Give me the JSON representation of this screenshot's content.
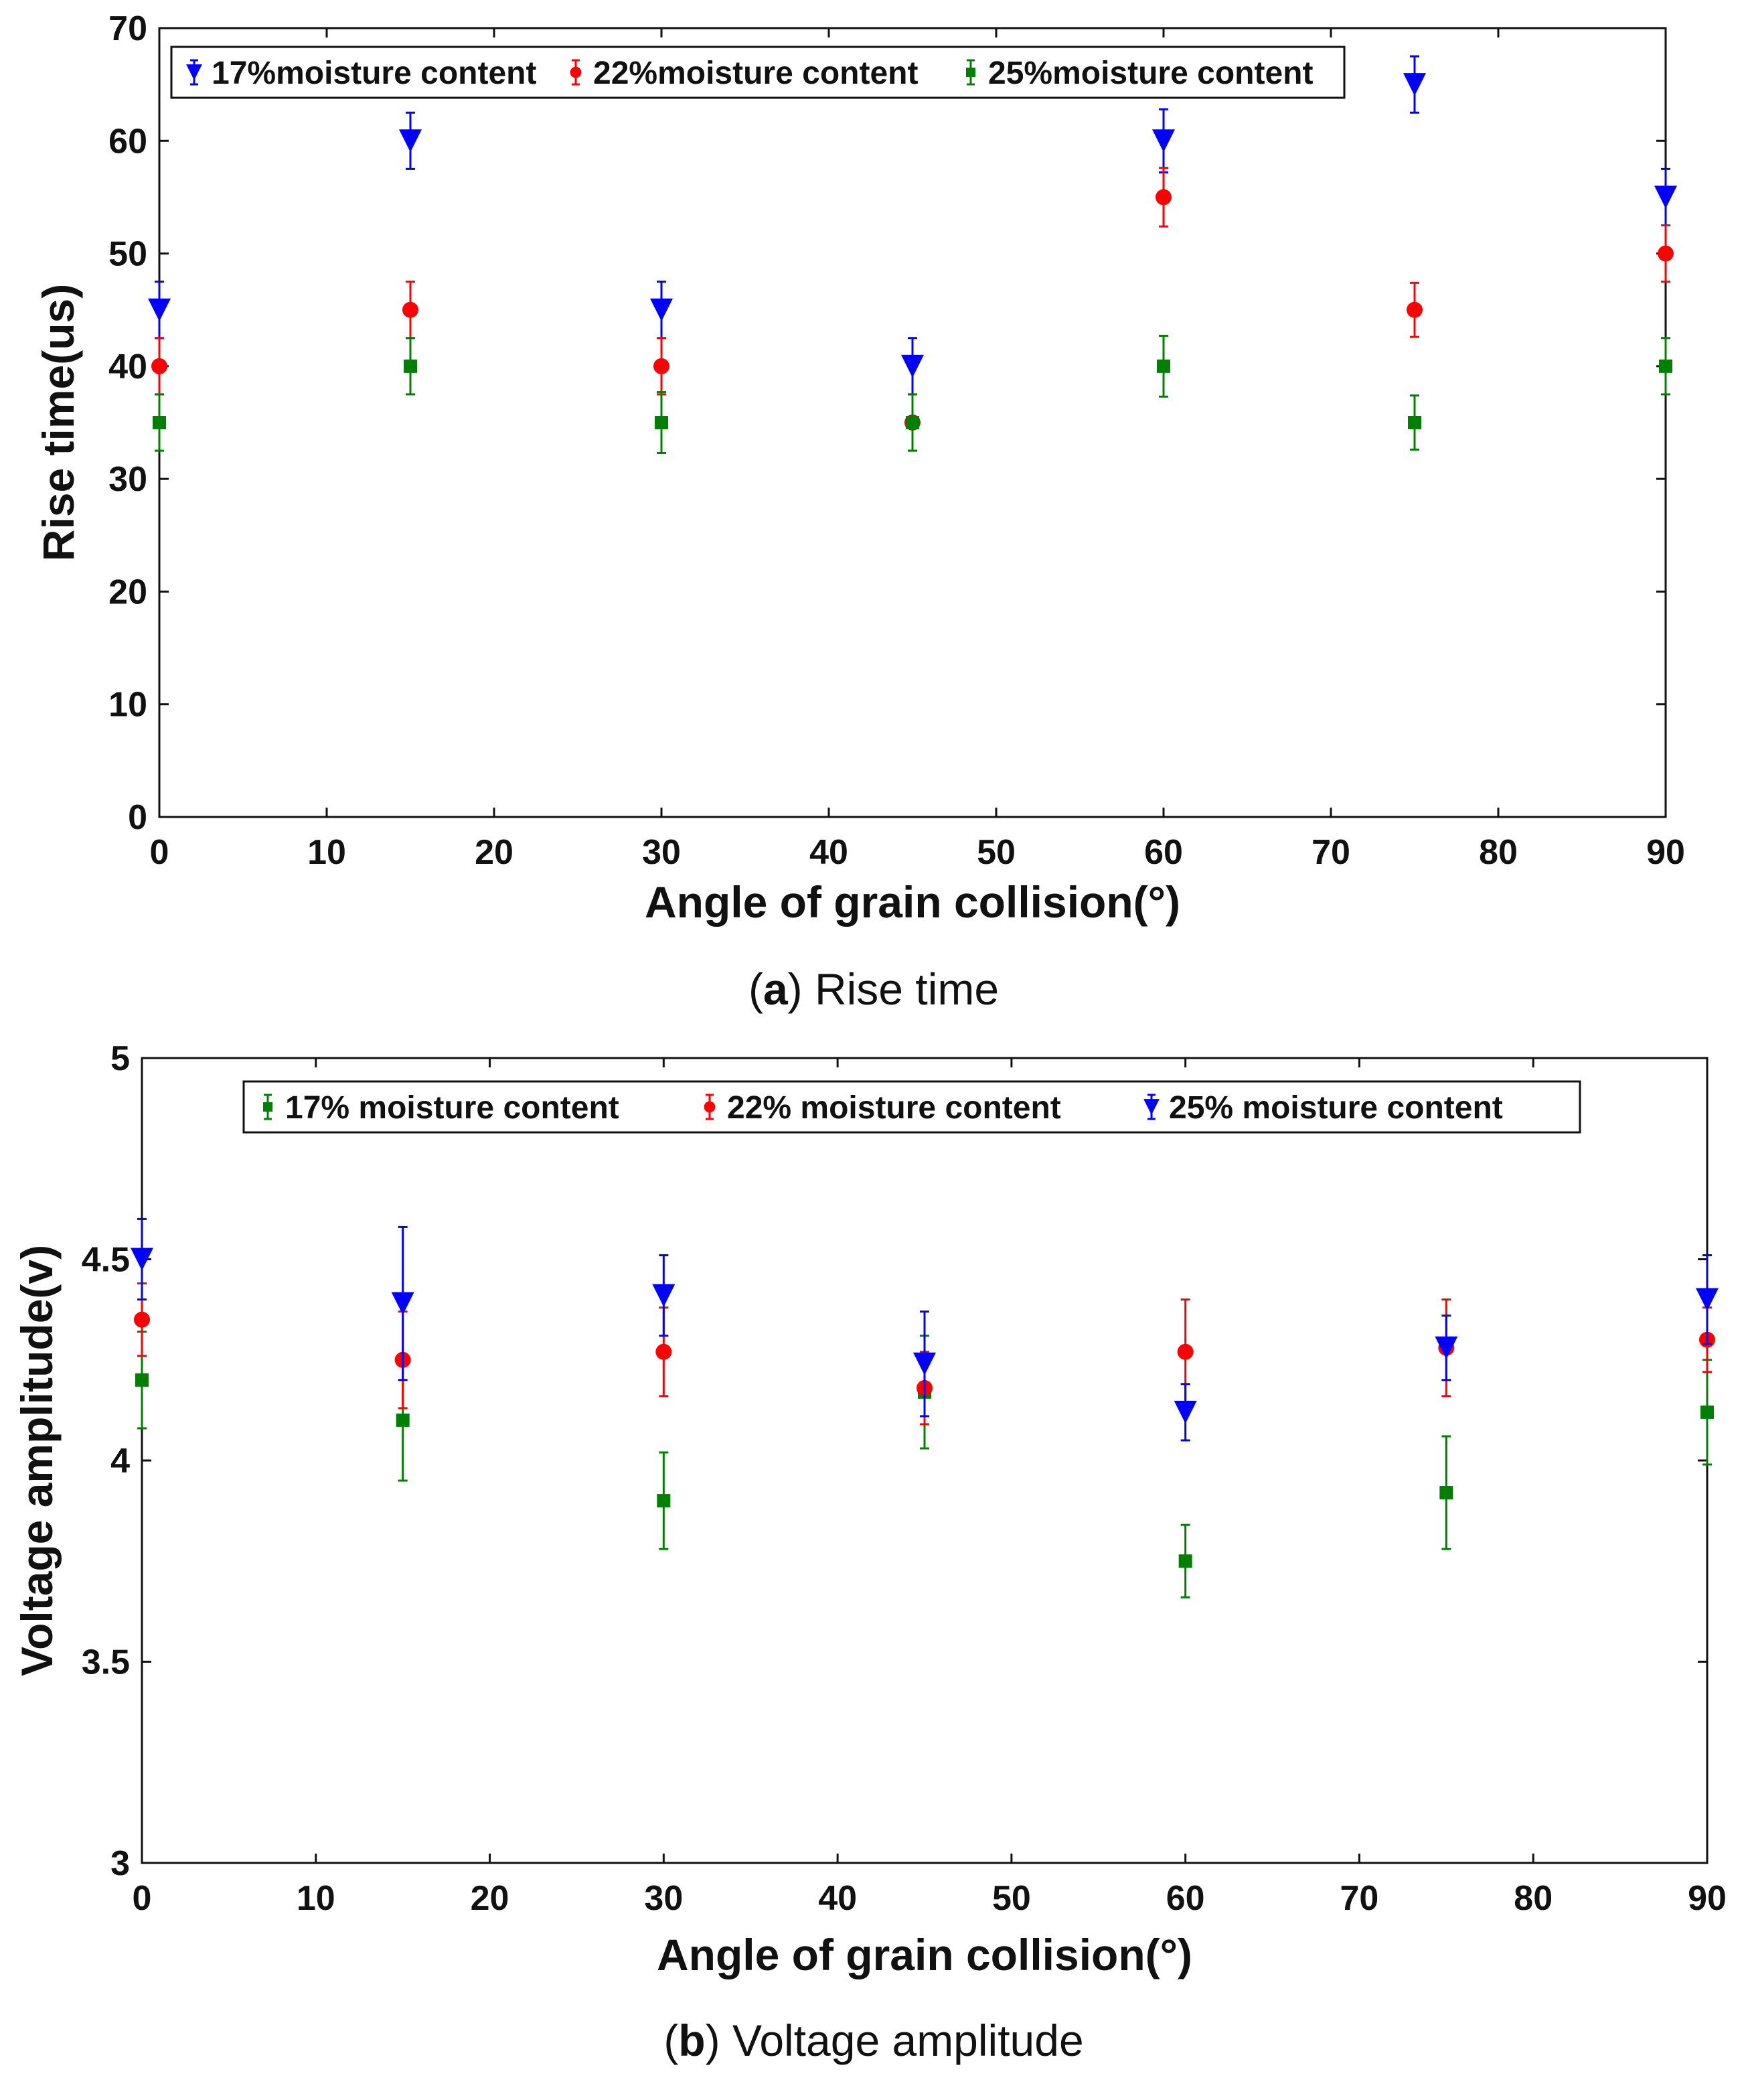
{
  "chart_data": [
    {
      "type": "scatter",
      "title": "",
      "xlabel": "Angle of grain collision(°)",
      "ylabel": "Rise time(us)",
      "xlim": [
        0,
        90
      ],
      "ylim": [
        0,
        70
      ],
      "xticks": [
        0,
        10,
        20,
        30,
        40,
        50,
        60,
        70,
        80,
        90
      ],
      "yticks": [
        0,
        10,
        20,
        30,
        40,
        50,
        60,
        70
      ],
      "x": [
        0,
        15,
        30,
        45,
        60,
        75,
        90
      ],
      "legend_position": "top-left",
      "caption_letter": "a",
      "caption_text": "Rise time",
      "series": [
        {
          "name": "17%moisture content",
          "color": "#0000ff",
          "marker": "triangle-down",
          "values": [
            45,
            60,
            45,
            40,
            60,
            65,
            55
          ],
          "errors": [
            2.5,
            2.5,
            2.5,
            2.5,
            2.8,
            2.5,
            2.5
          ]
        },
        {
          "name": "22%moisture content",
          "color": "#ff0000",
          "marker": "circle",
          "values": [
            40,
            45,
            40,
            35,
            55,
            45,
            50
          ],
          "errors": [
            2.5,
            2.5,
            2.5,
            2.5,
            2.6,
            2.4,
            2.5
          ]
        },
        {
          "name": "25%moisture content",
          "color": "#008000",
          "marker": "square",
          "values": [
            35,
            40,
            35,
            35,
            40,
            35,
            40
          ],
          "errors": [
            2.5,
            2.5,
            2.7,
            2.5,
            2.7,
            2.4,
            2.5
          ]
        }
      ]
    },
    {
      "type": "scatter",
      "title": "",
      "xlabel": "Angle of grain collision(°)",
      "ylabel": "Voltage amplitude(v)",
      "xlim": [
        0,
        90
      ],
      "ylim": [
        3,
        5
      ],
      "xticks": [
        0,
        10,
        20,
        30,
        40,
        50,
        60,
        70,
        80,
        90
      ],
      "yticks": [
        3,
        3.5,
        4,
        4.5,
        5
      ],
      "x": [
        0,
        15,
        30,
        45,
        60,
        75,
        90
      ],
      "legend_position": "top",
      "caption_letter": "b",
      "caption_text": "Voltage amplitude",
      "series": [
        {
          "name": "17% moisture content",
          "color": "#008000",
          "marker": "square",
          "values": [
            4.2,
            4.1,
            3.9,
            4.17,
            3.75,
            3.92,
            4.12
          ],
          "errors": [
            0.12,
            0.15,
            0.12,
            0.14,
            0.09,
            0.14,
            0.13
          ]
        },
        {
          "name": "22% moisture content",
          "color": "#ff0000",
          "marker": "circle",
          "values": [
            4.35,
            4.25,
            4.27,
            4.18,
            4.27,
            4.28,
            4.3
          ],
          "errors": [
            0.09,
            0.12,
            0.11,
            0.09,
            0.13,
            0.12,
            0.08
          ]
        },
        {
          "name": "25% moisture content",
          "color": "#0000ff",
          "marker": "triangle-down",
          "values": [
            4.5,
            4.39,
            4.41,
            4.24,
            4.12,
            4.28,
            4.4
          ],
          "errors": [
            0.1,
            0.19,
            0.1,
            0.13,
            0.07,
            0.08,
            0.11
          ]
        }
      ]
    }
  ]
}
